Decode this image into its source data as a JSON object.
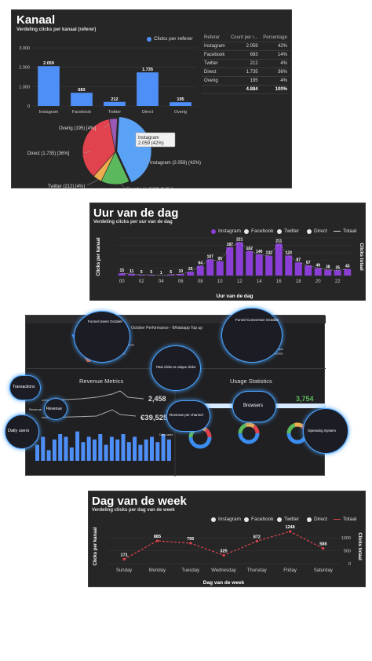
{
  "kanaal": {
    "title": "Kanaal",
    "subtitle": "Verdeling clicks per kanaal (referer)",
    "legend": "Clicks per referer",
    "table_headers": [
      "Referer",
      "Count per r...",
      "Percentage"
    ],
    "table_rows": [
      [
        "Instagram",
        "2.059",
        "42%"
      ],
      [
        "Facebook",
        "683",
        "14%"
      ],
      [
        "Twitter",
        "212",
        "4%"
      ],
      [
        "Direct",
        "1.735",
        "36%"
      ],
      [
        "Overig",
        "195",
        "4%"
      ]
    ],
    "table_total": [
      "",
      "4.884",
      "100%"
    ],
    "pie_labels": [
      "Overig (195) [4%]",
      "Direct (1.735) [36%]",
      "Twitter (212) [4%]",
      "Facebook (683) [14%]",
      "Instagram (2.059) (42%)"
    ],
    "tooltip": [
      "Instagram",
      "2.059 (42%)"
    ]
  },
  "uur": {
    "title": "Uur van de dag",
    "subtitle": "Verdeling clicks per uur van de dag",
    "legend": [
      "Instagram",
      "Facebook",
      "Twitter",
      "Direct",
      "Totaal"
    ],
    "ylabel": "Clicks per kanaal",
    "ylabel_right": "Clicks totaal",
    "xlabel": "Uur van de dag",
    "x_ticks": [
      "00",
      "02",
      "04",
      "06",
      "08",
      "10",
      "12",
      "14",
      "16",
      "18",
      "20",
      "22"
    ]
  },
  "dashboard": {
    "header_left": "Whatsapp Outlet Performance",
    "header_center": "October Performance - Whatsapp Top up",
    "funnel1_title": "Funnel Users October",
    "funnel1_legend": [
      "Website traffic",
      "Users in filter funnel",
      "Users ordered",
      "Transactions"
    ],
    "funnel2_title": "Funnel Conversion October",
    "funnel2_legend": [
      "Web to Whatsapp",
      "Chat interaction",
      "Chat to conversion",
      "Funnel conversion"
    ],
    "bubble_total": "Total clicks vs unique clicks",
    "revenue_title": "Revenue Metrics",
    "usage_title": "Usage Statistics",
    "transactions_label": "Transactions",
    "transactions_value": "2,458",
    "revenue_small": "Revenue",
    "revenue_label": "Revenue",
    "revenue_value": "€39,525",
    "users_value": "3,754",
    "browsers_label": "Browsers",
    "daily_users_label": "Daily users",
    "revenue_channel_label": "Revenue per channel",
    "os_label": "Operating System",
    "daily_users_legend": "Daily users"
  },
  "week": {
    "title": "Dag van de week",
    "subtitle": "Verdeling clicks per dag van de week",
    "legend": [
      "Instagram",
      "Facebook",
      "Twitter",
      "Direct",
      "Totaal"
    ],
    "ylabel": "Clicks per kanaal",
    "ylabel_right": "Clicks totaal",
    "xlabel": "Dag van de week"
  },
  "chart_data": [
    {
      "type": "bar",
      "title": "Kanaal",
      "subtitle": "Verdeling clicks per kanaal (referer)",
      "categories": [
        "Instagram",
        "Facebook",
        "Twitter",
        "Direct",
        "Overig"
      ],
      "values": [
        2059,
        683,
        212,
        1735,
        195
      ],
      "value_labels": [
        "2.059",
        "683",
        "212",
        "1.735",
        "195"
      ],
      "y_ticks": [
        "0",
        "1.000",
        "2.000",
        "3.000"
      ],
      "ylim": [
        0,
        3000
      ],
      "legend": "top-right",
      "color": "#4e8ef7"
    },
    {
      "type": "pie",
      "categories": [
        "Instagram",
        "Facebook",
        "Twitter",
        "Direct",
        "Overig"
      ],
      "values": [
        2059,
        683,
        212,
        1735,
        195
      ],
      "colors": [
        "#5aa2f5",
        "#5cb85c",
        "#f0ad4e",
        "#e0434d",
        "#9b59b6"
      ]
    },
    {
      "type": "bar",
      "title": "Uur van de dag",
      "x": [
        0,
        1,
        2,
        3,
        4,
        5,
        6,
        7,
        8,
        9,
        10,
        11,
        12,
        13,
        14,
        15,
        16,
        17,
        18,
        19,
        20,
        21,
        22,
        23
      ],
      "values": [
        15,
        11,
        5,
        5,
        1,
        6,
        10,
        25,
        64,
        107,
        95,
        187,
        221,
        162,
        140,
        132,
        211,
        133,
        87,
        67,
        49,
        38,
        35,
        43
      ],
      "color": "#8a3ed6",
      "line": "Totaal",
      "ylim": [
        0,
        250
      ],
      "grid": true
    },
    {
      "type": "line",
      "title": "Dag van de week",
      "categories": [
        "Sunday",
        "Monday",
        "Tuesday",
        "Wednesday",
        "Thursday",
        "Friday",
        "Saturday"
      ],
      "values": [
        171,
        885,
        795,
        325,
        872,
        1248,
        588
      ],
      "right_ticks": [
        "0",
        "500",
        "1000"
      ],
      "ylim": [
        0,
        1400
      ],
      "color": "#e0434d",
      "series_name": "Totaal"
    },
    {
      "type": "bar",
      "title": "Daily users",
      "values": [
        6,
        9,
        4,
        8,
        10,
        9,
        5,
        11,
        7,
        9,
        8,
        10,
        6,
        9,
        8,
        10,
        7,
        9,
        6,
        8,
        9,
        7,
        10,
        8
      ],
      "color": "#4e8ef7"
    }
  ]
}
